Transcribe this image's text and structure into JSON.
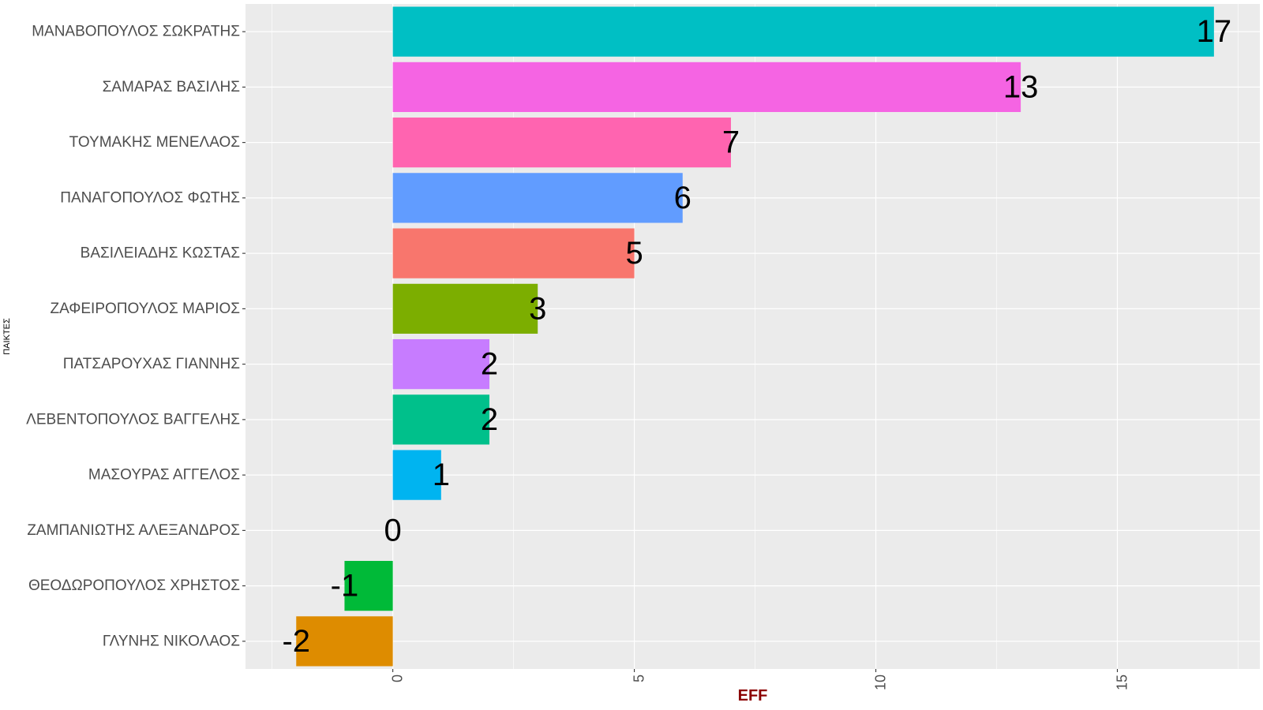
{
  "chart_data": {
    "type": "bar",
    "orientation": "horizontal",
    "categories": [
      "ΜΑΝΑΒΟΠΟΥΛΟΣ ΣΩΚΡΑΤΗΣ",
      "ΣΑΜΑΡΑΣ ΒΑΣΙΛΗΣ",
      "ΤΟΥΜΑΚΗΣ ΜΕΝΕΛΑΟΣ",
      "ΠΑΝΑΓΟΠΟΥΛΟΣ ΦΩΤΗΣ",
      "ΒΑΣΙΛΕΙΑΔΗΣ ΚΩΣΤΑΣ",
      "ΖΑΦΕΙΡΟΠΟΥΛΟΣ ΜΑΡΙΟΣ",
      "ΠΑΤΣΑΡΟΥΧΑΣ ΓΙΑΝΝΗΣ",
      "ΛΕΒΕΝΤΟΠΟΥΛΟΣ ΒΑΓΓΕΛΗΣ",
      "ΜΑΣΟΥΡΑΣ ΑΓΓΕΛΟΣ",
      "ΖΑΜΠΑΝΙΩΤΗΣ ΑΛΕΞΑΝΔΡΟΣ",
      "ΘΕΟΔΩΡΟΠΟΥΛΟΣ ΧΡΗΣΤΟΣ",
      "ΓΛΥΝΗΣ ΝΙΚΟΛΑΟΣ"
    ],
    "values": [
      17,
      13,
      7,
      6,
      5,
      3,
      2,
      2,
      1,
      0,
      -1,
      -2
    ],
    "colors": [
      "#00BFC4",
      "#F564E3",
      "#FF64B0",
      "#619CFF",
      "#F8766D",
      "#7CAE00",
      "#C77CFF",
      "#00C08B",
      "#00B4F0",
      "#DE8C00",
      "#00BA38",
      "#DE8C00"
    ],
    "xlabel": "EFF",
    "ylabel": "ΠΑΙΚΤΕΣ",
    "xlim": [
      -3.05,
      17.95
    ],
    "xticks": [
      0,
      5,
      10,
      15
    ],
    "grid": true,
    "legend": "none",
    "panel_background": "#EBEBEB",
    "xlabel_color": "#8B0000"
  }
}
